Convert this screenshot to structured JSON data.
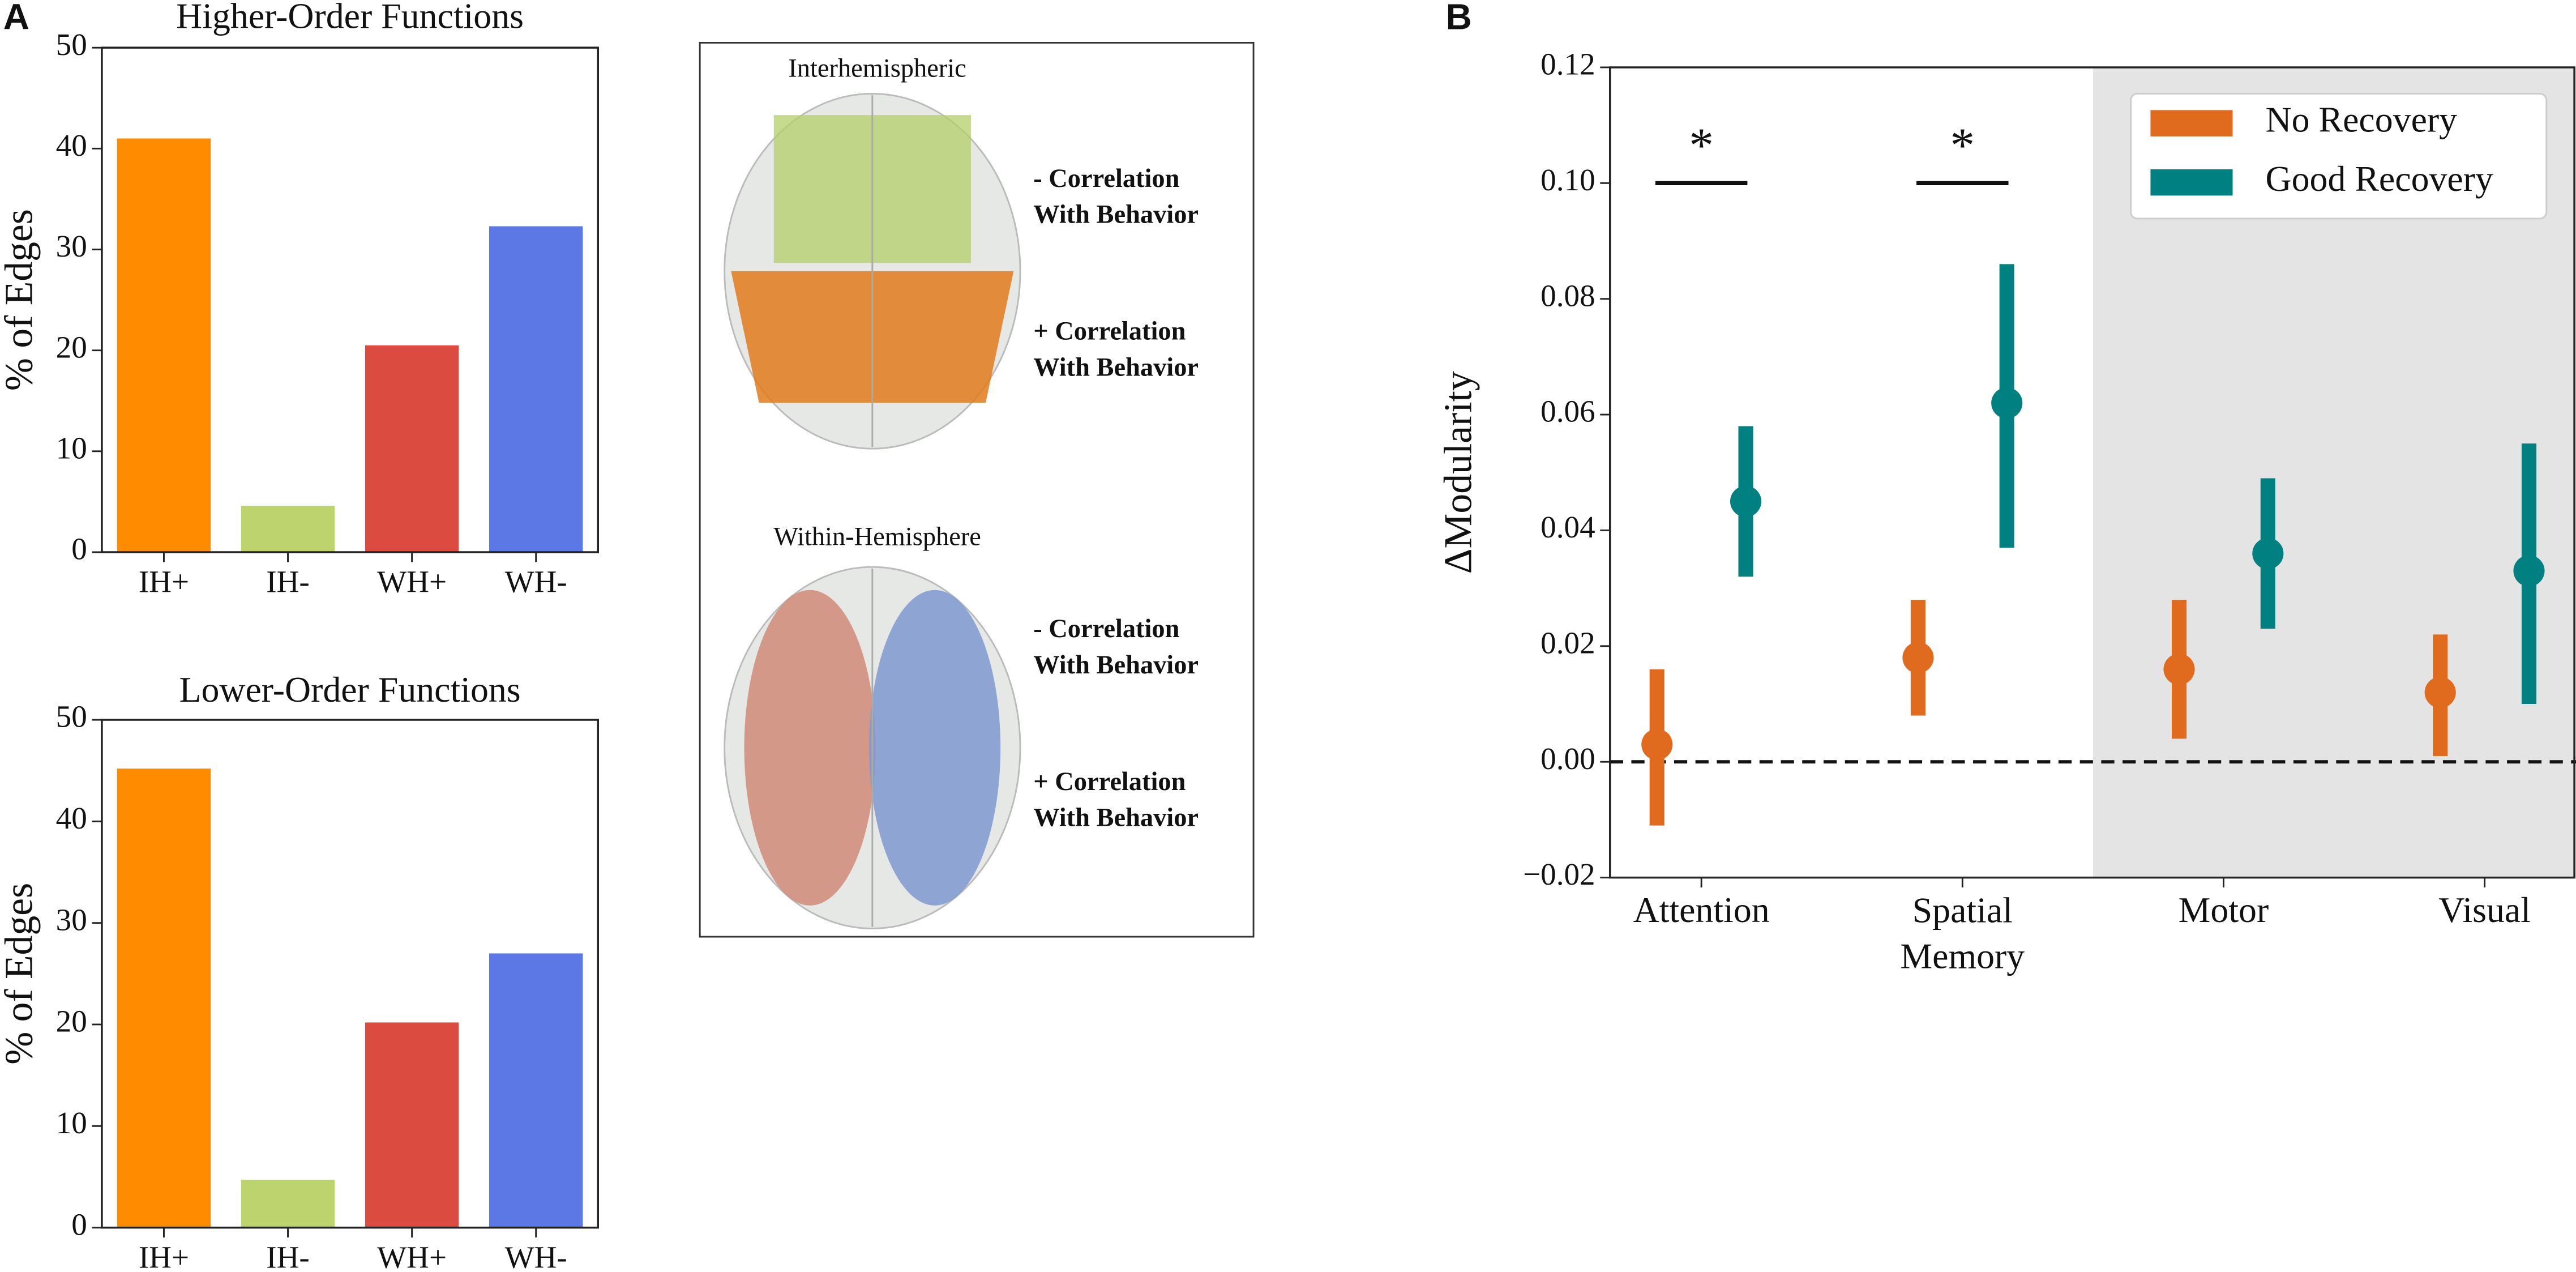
{
  "panels": [
    "A",
    "B"
  ],
  "chart_data": [
    {
      "type": "bar",
      "title": "Higher-Order Functions",
      "y_label": "% of Edges",
      "categories": [
        "IH+",
        "IH-",
        "WH+",
        "WH-"
      ],
      "values": [
        41,
        4.6,
        20.5,
        32.3
      ],
      "colors": [
        "#ff8c00",
        "#bcd36e",
        "#dc4b40",
        "#5b78e4"
      ],
      "ylim": [
        0,
        50
      ],
      "yticks": [
        0,
        10,
        20,
        30,
        40,
        50
      ]
    },
    {
      "type": "bar",
      "title": "Lower-Order Functions",
      "y_label": "% of Edges",
      "categories": [
        "IH+",
        "IH-",
        "WH+",
        "WH-"
      ],
      "values": [
        45.2,
        4.7,
        20.2,
        27.0
      ],
      "colors": [
        "#ff8c00",
        "#bcd36e",
        "#dc4b40",
        "#5b78e4"
      ],
      "ylim": [
        0,
        50
      ],
      "yticks": [
        0,
        10,
        20,
        30,
        40,
        50
      ]
    },
    {
      "type": "pointrange",
      "y_label": "ΔModularity",
      "categories": [
        "Attention",
        "Spatial Memory",
        "Motor",
        "Visual"
      ],
      "series": [
        {
          "name": "No Recovery",
          "color": "#e06b1f",
          "values": [
            0.003,
            0.018,
            0.016,
            0.012
          ],
          "lower": [
            -0.011,
            0.008,
            0.004,
            0.001
          ],
          "upper": [
            0.016,
            0.028,
            0.028,
            0.022
          ]
        },
        {
          "name": "Good Recovery",
          "color": "#008080",
          "values": [
            0.045,
            0.062,
            0.036,
            0.033
          ],
          "lower": [
            0.032,
            0.037,
            0.023,
            0.01
          ],
          "upper": [
            0.058,
            0.086,
            0.049,
            0.055
          ]
        }
      ],
      "ylim": [
        -0.02,
        0.12
      ],
      "yticks": [
        {
          "value": -0.02,
          "label": "−0.02"
        },
        {
          "value": 0,
          "label": "0.00"
        },
        0.02,
        0.04,
        0.06,
        0.08,
        {
          "value": 0.1,
          "label": "0.10"
        },
        0.12
      ],
      "reference_line": 0,
      "shade_from_category": 2,
      "legend": "upper right",
      "annotations": [
        {
          "text": "*",
          "category": 0,
          "y": 0.1
        },
        {
          "text": "*",
          "category": 1,
          "y": 0.1
        }
      ]
    }
  ],
  "diagram": {
    "groups": [
      {
        "title": "Interhemispheric",
        "labels": [
          {
            "lines": [
              "- Correlation",
              "With Behavior"
            ],
            "color": "#8fb33a"
          },
          {
            "lines": [
              "+ Correlation",
              "With Behavior"
            ],
            "color": "#f08a1c"
          }
        ]
      },
      {
        "title": "Within-Hemisphere",
        "labels": [
          {
            "lines": [
              "- Correlation",
              "With Behavior"
            ],
            "color": "#4a72c4"
          },
          {
            "lines": [
              "+ Correlation",
              "With Behavior"
            ],
            "color": "#c8141c"
          }
        ]
      }
    ]
  }
}
